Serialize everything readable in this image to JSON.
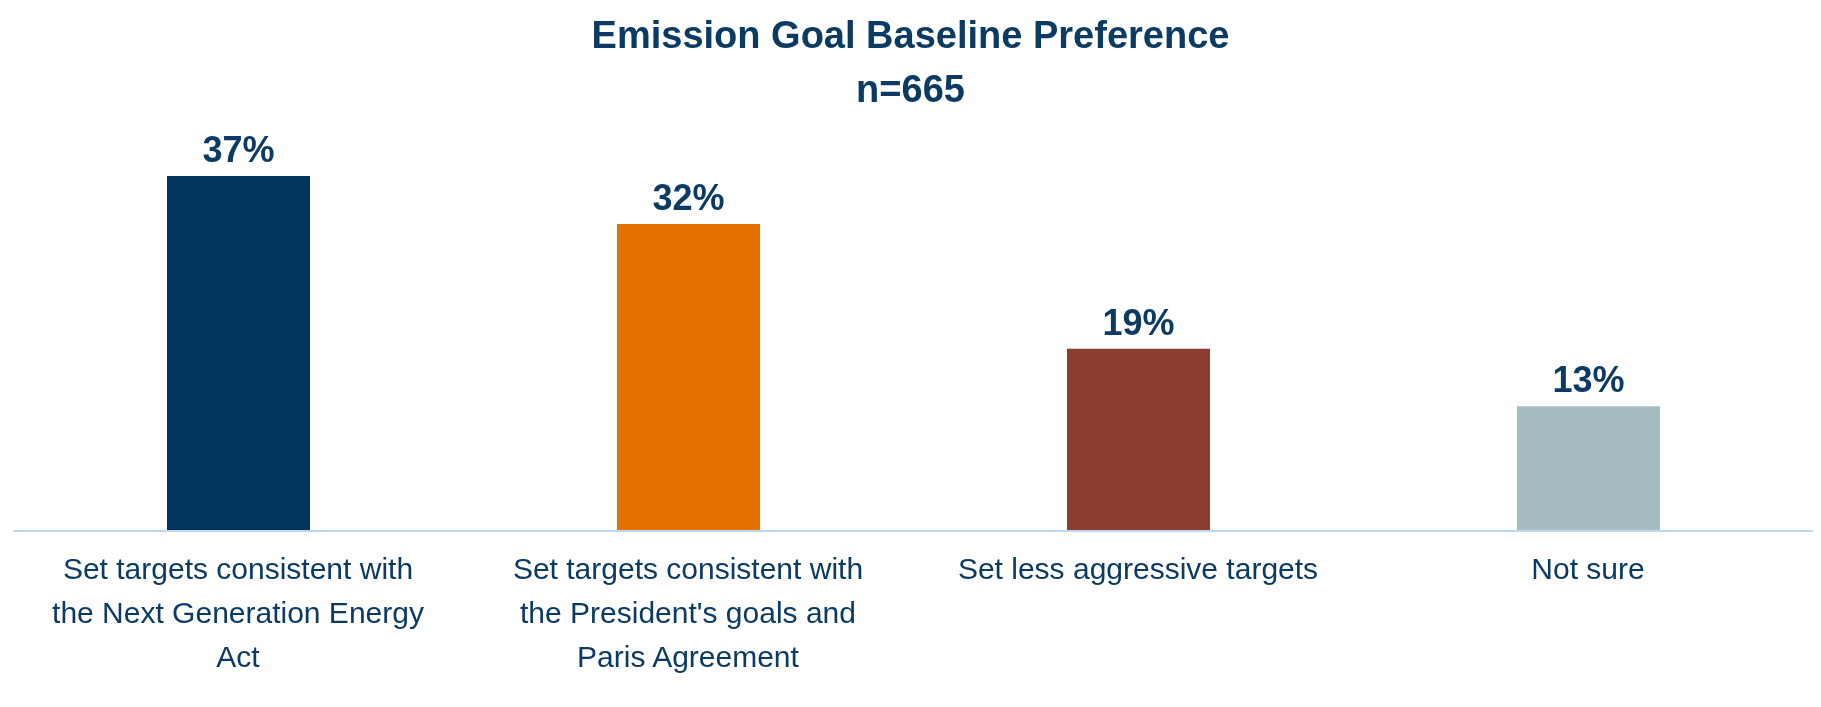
{
  "chart_data": {
    "type": "bar",
    "title": "Emission Goal Baseline Preference",
    "subtitle": "n=665",
    "categories": [
      "Set targets consistent with the Next Generation Energy Act",
      "Set targets consistent with the President's goals and Paris Agreement",
      "Set less aggressive targets",
      "Not sure"
    ],
    "values": [
      37,
      32,
      19,
      13
    ],
    "colors": [
      "#03365f",
      "#e57200",
      "#8b3e2f",
      "#a5bcc1"
    ],
    "value_labels": [
      "37%",
      "32%",
      "19%",
      "13%"
    ]
  }
}
